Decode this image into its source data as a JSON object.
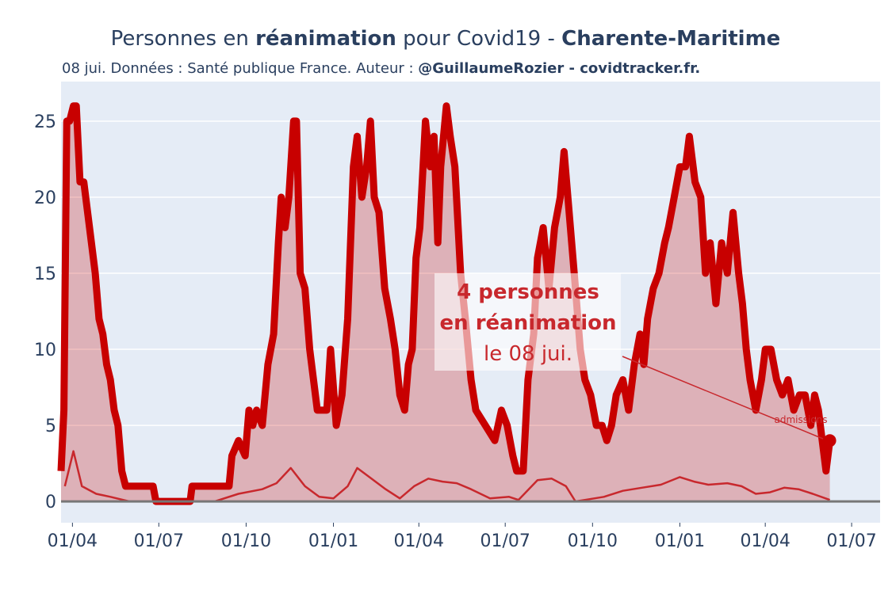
{
  "chart_data": {
    "type": "line",
    "title": [
      "Personnes en ",
      "réanimation",
      " pour Covid19 - ",
      "Charente-Maritime"
    ],
    "subtitle": [
      "08 jui. Données : Santé publique France. Auteur : ",
      "@GuillaumeRozier - covidtracker.fr."
    ],
    "xlim": [
      -12,
      851
    ],
    "ylim": [
      -1.4,
      27.6
    ],
    "xticks": [
      {
        "value": 0,
        "label": "01/04"
      },
      {
        "value": 91,
        "label": "01/07"
      },
      {
        "value": 183,
        "label": "01/10"
      },
      {
        "value": 275,
        "label": "01/01"
      },
      {
        "value": 365,
        "label": "01/04"
      },
      {
        "value": 456,
        "label": "01/07"
      },
      {
        "value": 548,
        "label": "01/10"
      },
      {
        "value": 640,
        "label": "01/01"
      },
      {
        "value": 730,
        "label": "01/04"
      },
      {
        "value": 821,
        "label": "01/07"
      }
    ],
    "yticks": [
      0,
      5,
      10,
      15,
      20,
      25
    ],
    "grid": true,
    "series": [
      {
        "color": "#c80000",
        "fill": "rgba(200,0,0,0.25)",
        "x": [
          -12,
          -9,
          -6,
          -3,
          1,
          4,
          8,
          12,
          16,
          20,
          24,
          28,
          32,
          36,
          40,
          44,
          48,
          52,
          56,
          85,
          88,
          124,
          126,
          165,
          168,
          175,
          182,
          186,
          190,
          194,
          200,
          206,
          212,
          217,
          220,
          224,
          228,
          233,
          236,
          240,
          245,
          250,
          254,
          258,
          268,
          272,
          278,
          284,
          290,
          296,
          300,
          305,
          310,
          314,
          318,
          323,
          329,
          335,
          340,
          345,
          350,
          354,
          358,
          362,
          366,
          372,
          377,
          381,
          385,
          388,
          394,
          398,
          403,
          409,
          414,
          420,
          425,
          435,
          445,
          452,
          458,
          464,
          468,
          475,
          480,
          486,
          490,
          496,
          502,
          508,
          514,
          518,
          522,
          526,
          530,
          535,
          540,
          546,
          552,
          558,
          563,
          568,
          573,
          580,
          586,
          592,
          598,
          602,
          606,
          612,
          618,
          624,
          628,
          634,
          640,
          646,
          650,
          656,
          662,
          667,
          672,
          678,
          684,
          690,
          696,
          702,
          706,
          710,
          714,
          720,
          726,
          730,
          736,
          742,
          748,
          754,
          760,
          766,
          772,
          778,
          782,
          786,
          790,
          794,
          798
        ],
        "values": [
          2,
          6,
          25,
          25,
          26,
          26,
          21,
          21,
          19,
          17,
          15,
          12,
          11,
          9,
          8,
          6,
          5,
          2,
          1,
          1,
          0,
          0,
          1,
          1,
          3,
          4,
          3,
          6,
          5,
          6,
          5,
          9,
          11,
          17,
          20,
          18,
          20,
          25,
          25,
          15,
          14,
          10,
          8,
          6,
          6,
          10,
          5,
          7,
          12,
          22,
          24,
          20,
          22,
          25,
          20,
          19,
          14,
          12,
          10,
          7,
          6,
          9,
          10,
          16,
          18,
          25,
          22,
          24,
          17,
          22,
          26,
          24,
          22,
          15,
          12,
          8,
          6,
          5,
          4,
          6,
          5,
          3,
          2,
          2,
          8,
          11,
          16,
          18,
          14,
          18,
          20,
          23,
          20,
          17,
          14,
          10,
          8,
          7,
          5,
          5,
          4,
          5,
          7,
          8,
          6,
          9,
          11,
          9,
          12,
          14,
          15,
          17,
          18,
          20,
          22,
          22,
          24,
          21,
          20,
          15,
          17,
          13,
          17,
          15,
          19,
          15,
          13,
          10,
          8,
          6,
          8,
          10,
          10,
          8,
          7,
          8,
          6,
          7,
          7,
          5,
          7,
          6,
          4,
          2,
          4
        ]
      },
      {
        "color": "#c8282d",
        "x": [
          -8,
          1,
          10,
          25,
          40,
          60,
          150,
          175,
          200,
          215,
          230,
          245,
          260,
          275,
          290,
          300,
          315,
          330,
          345,
          360,
          375,
          390,
          405,
          420,
          440,
          460,
          470,
          490,
          505,
          520,
          530,
          540,
          560,
          580,
          600,
          620,
          640,
          655,
          670,
          690,
          705,
          720,
          735,
          750,
          765,
          780,
          798
        ],
        "values": [
          1,
          3.3,
          1,
          0.5,
          0.3,
          0,
          0,
          0.5,
          0.8,
          1.2,
          2.2,
          1,
          0.3,
          0.2,
          1,
          2.2,
          1.5,
          0.8,
          0.2,
          1,
          1.5,
          1.3,
          1.2,
          0.8,
          0.2,
          0.3,
          0.1,
          1.4,
          1.5,
          1,
          0,
          0.1,
          0.3,
          0.7,
          0.9,
          1.1,
          1.6,
          1.3,
          1.1,
          1.2,
          1,
          0.5,
          0.6,
          0.9,
          0.8,
          0.5,
          0.1
        ]
      }
    ],
    "annotation": [
      "4 personnes",
      "en réanimation",
      "le 08 jui."
    ],
    "admissions_label": "admissions"
  }
}
